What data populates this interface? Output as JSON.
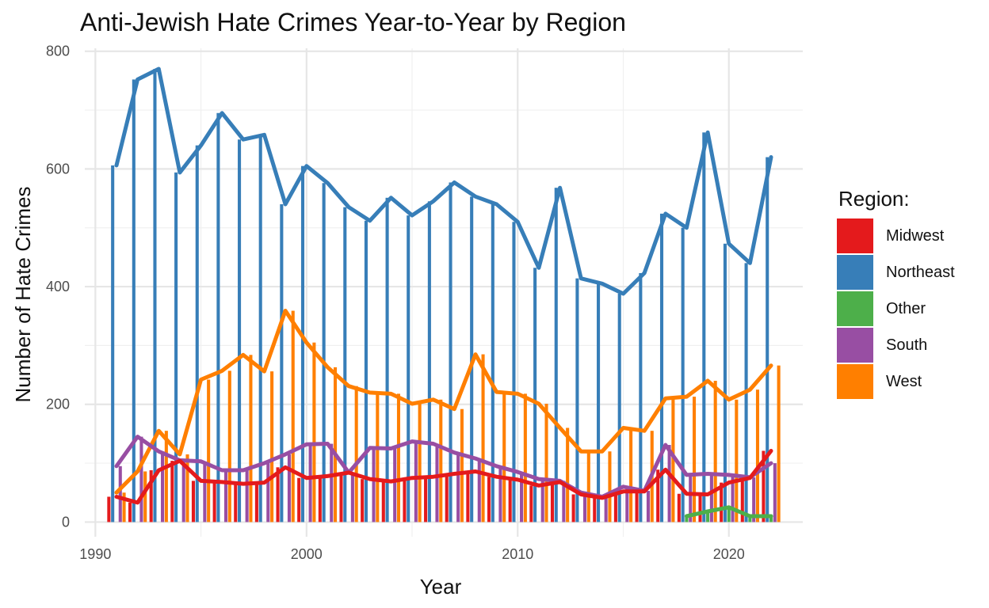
{
  "chart_data": {
    "type": "bar",
    "title": "Anti-Jewish Hate Crimes Year-to-Year by Region",
    "xlabel": "Year",
    "ylabel": "Number of Hate Crimes",
    "xlim": [
      1989.5,
      2023.5
    ],
    "ylim": [
      -25,
      805
    ],
    "x_ticks": [
      1990,
      2000,
      2010,
      2020
    ],
    "y_ticks": [
      0,
      200,
      400,
      600,
      800
    ],
    "grid": true,
    "legend_title": "Region:",
    "legend_position": "right",
    "years": [
      1991,
      1992,
      1993,
      1994,
      1995,
      1996,
      1997,
      1998,
      1999,
      2000,
      2001,
      2002,
      2003,
      2004,
      2005,
      2006,
      2007,
      2008,
      2009,
      2010,
      2011,
      2012,
      2013,
      2014,
      2015,
      2016,
      2017,
      2018,
      2019,
      2020,
      2021,
      2022
    ],
    "series": [
      {
        "name": "Midwest",
        "color": "#e41a1c",
        "values": [
          43,
          33,
          88,
          104,
          70,
          68,
          65,
          67,
          93,
          75,
          78,
          84,
          73,
          69,
          75,
          77,
          82,
          86,
          77,
          72,
          62,
          68,
          47,
          41,
          52,
          52,
          89,
          48,
          47,
          67,
          75,
          121
        ]
      },
      {
        "name": "Northeast",
        "color": "#377eb8",
        "values": [
          606,
          752,
          770,
          594,
          640,
          695,
          650,
          658,
          540,
          605,
          576,
          535,
          512,
          551,
          521,
          545,
          577,
          553,
          540,
          510,
          432,
          568,
          414,
          405,
          388,
          423,
          524,
          500,
          662,
          473,
          440,
          620
        ]
      },
      {
        "name": "Other",
        "color": "#4daf4a",
        "values": [
          null,
          null,
          null,
          null,
          null,
          null,
          null,
          null,
          null,
          null,
          null,
          null,
          null,
          null,
          null,
          null,
          null,
          null,
          null,
          null,
          null,
          null,
          null,
          null,
          null,
          null,
          null,
          10,
          18,
          25,
          10,
          10
        ]
      },
      {
        "name": "South",
        "color": "#984ea3",
        "values": [
          95,
          145,
          120,
          105,
          103,
          88,
          88,
          100,
          115,
          132,
          133,
          84,
          126,
          125,
          137,
          133,
          118,
          108,
          95,
          85,
          73,
          70,
          50,
          43,
          60,
          53,
          131,
          80,
          82,
          80,
          76,
          100
        ]
      },
      {
        "name": "West",
        "color": "#ff7f00",
        "values": [
          50,
          86,
          155,
          115,
          242,
          257,
          284,
          256,
          359,
          305,
          263,
          231,
          220,
          218,
          201,
          208,
          192,
          285,
          221,
          218,
          201,
          160,
          120,
          120,
          160,
          155,
          210,
          213,
          240,
          208,
          225,
          266
        ]
      }
    ]
  }
}
